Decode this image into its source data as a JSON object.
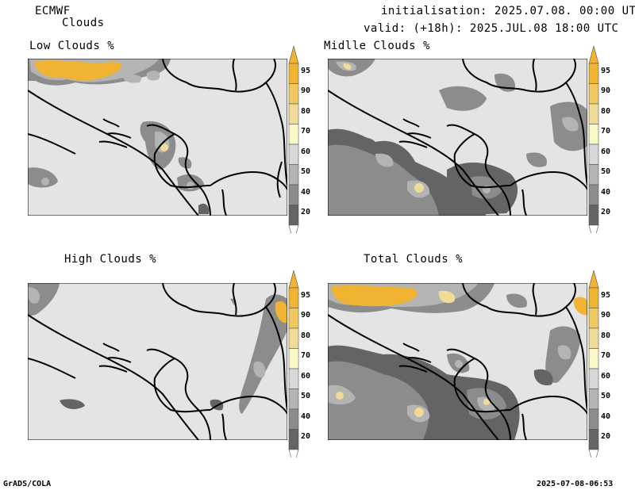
{
  "header": {
    "model": "ECMWF",
    "variable": "Clouds",
    "init_line": "initialisation: 2025.07.08. 00:00 UTC",
    "valid_line": "valid: (+18h): 2025.JUL.08 18:00 UTC"
  },
  "panels": [
    {
      "title": "Low Clouds %"
    },
    {
      "title": "Midlle Clouds %"
    },
    {
      "title": "High Clouds %"
    },
    {
      "title": "Total Clouds %"
    }
  ],
  "colorbar": {
    "ticks": [
      "95",
      "90",
      "80",
      "70",
      "60",
      "50",
      "40",
      "20"
    ],
    "colors": [
      "#f0b432",
      "#f0c860",
      "#f0dc98",
      "#f8f8c8",
      "#d8d8d8",
      "#b4b4b4",
      "#8c8c8c",
      "#646464"
    ]
  },
  "footer": {
    "left": "GrADS/COLA",
    "right": "2025-07-08-06:53"
  }
}
